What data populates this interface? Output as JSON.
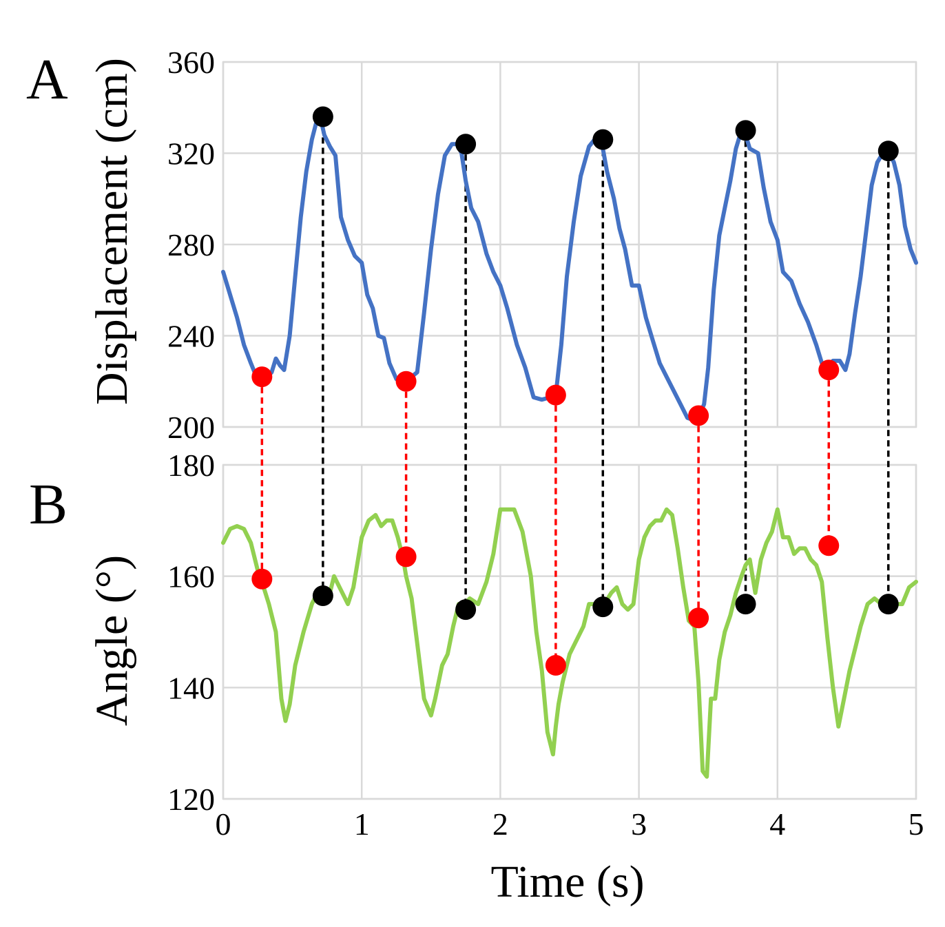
{
  "figure": {
    "panel_a_label": "A",
    "panel_b_label": "B"
  },
  "chart_data": [
    {
      "panel": "A",
      "type": "line",
      "ylabel": "Displacement (cm)",
      "xlim": [
        0,
        5
      ],
      "ylim": [
        200,
        360
      ],
      "yticks": [
        "200",
        "240",
        "280",
        "320",
        "360"
      ],
      "grid": true,
      "series": [
        {
          "name": "Displacement",
          "color": "#4472c4",
          "x": [
            0,
            0.1,
            0.15,
            0.2,
            0.24,
            0.27,
            0.32,
            0.35,
            0.38,
            0.41,
            0.44,
            0.48,
            0.52,
            0.56,
            0.6,
            0.64,
            0.67,
            0.7,
            0.73,
            0.77,
            0.81,
            0.85,
            0.9,
            0.95,
            1.0,
            1.04,
            1.08,
            1.12,
            1.16,
            1.2,
            1.25,
            1.27,
            1.32,
            1.36,
            1.4,
            1.45,
            1.5,
            1.55,
            1.6,
            1.65,
            1.69,
            1.72,
            1.75,
            1.79,
            1.84,
            1.9,
            1.95,
            2.0,
            2.05,
            2.12,
            2.18,
            2.24,
            2.3,
            2.36,
            2.4,
            2.44,
            2.48,
            2.53,
            2.58,
            2.64,
            2.68,
            2.72,
            2.74,
            2.77,
            2.82,
            2.86,
            2.9,
            2.95,
            2.98,
            3.0,
            3.05,
            3.1,
            3.15,
            3.2,
            3.25,
            3.3,
            3.35,
            3.4,
            3.43,
            3.47,
            3.5,
            3.54,
            3.58,
            3.62,
            3.66,
            3.7,
            3.74,
            3.77,
            3.8,
            3.86,
            3.9,
            3.95,
            4.0,
            4.04,
            4.1,
            4.16,
            4.22,
            4.28,
            4.32,
            4.36,
            4.4,
            4.45,
            4.49,
            4.52,
            4.56,
            4.6,
            4.64,
            4.68,
            4.72,
            4.76,
            4.8,
            4.84,
            4.88,
            4.92,
            4.96,
            5.0
          ],
          "y": [
            268,
            248,
            236,
            228,
            222,
            221,
            222,
            224,
            230,
            227,
            225,
            240,
            266,
            292,
            312,
            326,
            333,
            336,
            328,
            323,
            319,
            292,
            282,
            275,
            272,
            258,
            252,
            240,
            239,
            228,
            221,
            221,
            221,
            222,
            224,
            250,
            278,
            302,
            319,
            324,
            324,
            320,
            308,
            296,
            290,
            276,
            268,
            262,
            252,
            236,
            226,
            213,
            212,
            213,
            214,
            236,
            266,
            290,
            310,
            323,
            326,
            325,
            322,
            312,
            300,
            287,
            278,
            262,
            262,
            262,
            248,
            238,
            228,
            222,
            216,
            210,
            204,
            203,
            204,
            210,
            226,
            260,
            284,
            296,
            308,
            322,
            330,
            328,
            322,
            320,
            305,
            290,
            282,
            268,
            264,
            254,
            246,
            236,
            228,
            226,
            229,
            229,
            225,
            232,
            250,
            266,
            286,
            306,
            316,
            320,
            321,
            316,
            306,
            288,
            278,
            272
          ]
        }
      ],
      "markers": {
        "minima": {
          "color": "#ff0000",
          "x": [
            0.28,
            1.32,
            2.4,
            3.43,
            4.37
          ],
          "y": [
            222,
            220,
            214,
            205,
            225
          ]
        },
        "maxima": {
          "color": "#000000",
          "x": [
            0.72,
            1.75,
            2.74,
            3.77,
            4.8
          ],
          "y": [
            336,
            324,
            326,
            330,
            321
          ]
        }
      }
    },
    {
      "panel": "B",
      "type": "line",
      "ylabel": "Angle (°)",
      "xlabel": "Time (s)",
      "xlim": [
        0,
        5
      ],
      "ylim": [
        120,
        180
      ],
      "xticks": [
        "0",
        "1",
        "2",
        "3",
        "4",
        "5"
      ],
      "yticks": [
        "120",
        "140",
        "160",
        "180"
      ],
      "grid": true,
      "series": [
        {
          "name": "Angle",
          "color": "#92d050",
          "x": [
            0,
            0.05,
            0.1,
            0.15,
            0.2,
            0.25,
            0.28,
            0.33,
            0.38,
            0.42,
            0.45,
            0.48,
            0.52,
            0.58,
            0.64,
            0.68,
            0.72,
            0.76,
            0.8,
            0.84,
            0.9,
            0.94,
            1.0,
            1.05,
            1.1,
            1.14,
            1.18,
            1.22,
            1.26,
            1.3,
            1.32,
            1.36,
            1.4,
            1.45,
            1.5,
            1.53,
            1.58,
            1.62,
            1.66,
            1.7,
            1.74,
            1.78,
            1.84,
            1.9,
            1.95,
            2.0,
            2.05,
            2.1,
            2.16,
            2.22,
            2.26,
            2.3,
            2.34,
            2.38,
            2.4,
            2.42,
            2.45,
            2.5,
            2.54,
            2.6,
            2.64,
            2.68,
            2.72,
            2.75,
            2.8,
            2.84,
            2.88,
            2.92,
            2.96,
            3.0,
            3.04,
            3.08,
            3.12,
            3.16,
            3.2,
            3.24,
            3.28,
            3.32,
            3.36,
            3.4,
            3.43,
            3.46,
            3.49,
            3.52,
            3.55,
            3.58,
            3.62,
            3.66,
            3.7,
            3.74,
            3.77,
            3.8,
            3.84,
            3.88,
            3.92,
            3.96,
            4.0,
            4.04,
            4.08,
            4.12,
            4.16,
            4.2,
            4.24,
            4.28,
            4.32,
            4.36,
            4.4,
            4.44,
            4.48,
            4.52,
            4.56,
            4.6,
            4.65,
            4.7,
            4.75,
            4.8,
            4.85,
            4.9,
            4.95,
            5.0
          ],
          "y": [
            166,
            168.5,
            169,
            168.5,
            166,
            161,
            159,
            155,
            150,
            138,
            134,
            137,
            144,
            150,
            155,
            157,
            157,
            156,
            160,
            158,
            155,
            158,
            167,
            170,
            171,
            169,
            170,
            170,
            167,
            163,
            160,
            156,
            148,
            138,
            135,
            138,
            144,
            146,
            151,
            155,
            155,
            156,
            155,
            159,
            164,
            172,
            172,
            172,
            168,
            160,
            150,
            143,
            132,
            128,
            133,
            137,
            141,
            146,
            148,
            151,
            155,
            155,
            154,
            155,
            157,
            158,
            155,
            154,
            155,
            163,
            167,
            169,
            170,
            170,
            172,
            171,
            165,
            158,
            152,
            151,
            141,
            125,
            124,
            138,
            138,
            145,
            150,
            153,
            157,
            160,
            162,
            163,
            157,
            163,
            166,
            168,
            172,
            167,
            167,
            164,
            165,
            165,
            163,
            162,
            159,
            149,
            140,
            133,
            138,
            143,
            147,
            151,
            155,
            156,
            155,
            155,
            155,
            155,
            158,
            159
          ]
        }
      ],
      "markers": {
        "minima": {
          "color": "#ff0000",
          "x": [
            0.28,
            1.32,
            2.4,
            3.43,
            4.37
          ],
          "y": [
            159.5,
            163.5,
            144,
            152.5,
            165.5
          ]
        },
        "maxima": {
          "color": "#000000",
          "x": [
            0.72,
            1.75,
            2.74,
            3.77,
            4.8
          ],
          "y": [
            156.5,
            154,
            154.5,
            155,
            155
          ]
        }
      }
    }
  ]
}
